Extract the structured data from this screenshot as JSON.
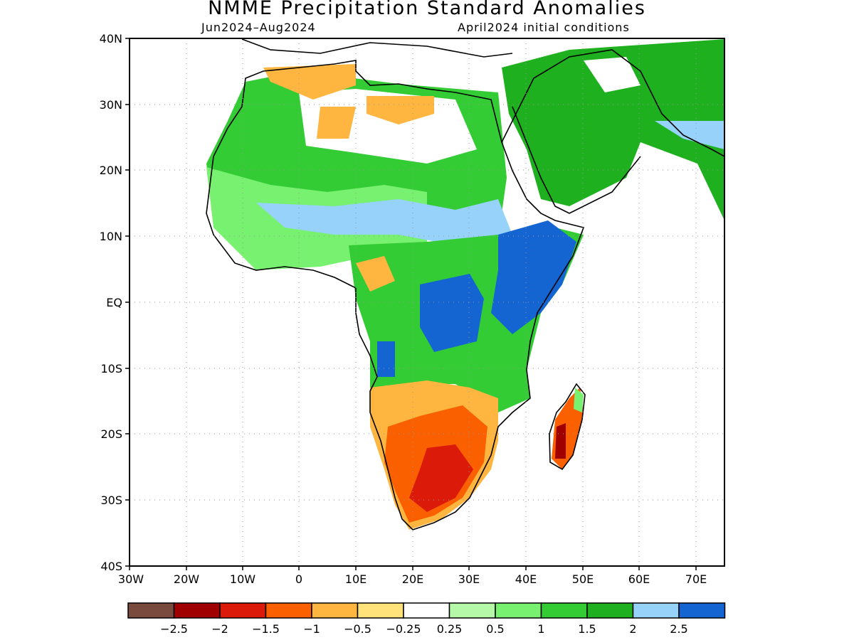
{
  "title": "NMME Precipitation Standard Anomalies",
  "subtitle_left": "Jun2024–Aug2024",
  "subtitle_right": "April2024 initial conditions",
  "lat_labels": [
    "40N",
    "30N",
    "20N",
    "10N",
    "EQ",
    "10S",
    "20S",
    "30S",
    "40S"
  ],
  "lon_labels": [
    "30W",
    "20W",
    "10W",
    "0",
    "10E",
    "20E",
    "30E",
    "40E",
    "50E",
    "60E",
    "70E"
  ],
  "colorbar": {
    "colors": [
      "#7a4a3e",
      "#a00000",
      "#dc1a0a",
      "#fa6000",
      "#ffb640",
      "#ffe27a",
      "#ffffff",
      "#b4f8a8",
      "#78f070",
      "#34cc34",
      "#1eb01e",
      "#96d2fa",
      "#1464d2"
    ],
    "labels": [
      "−2.5",
      "−2",
      "−1.5",
      "−1",
      "−0.5",
      "−0.25",
      "0.25",
      "0.5",
      "1",
      "1.5",
      "2",
      "2.5"
    ]
  },
  "map_extent": {
    "lon_range": [
      -30,
      75
    ],
    "lat_range": [
      -40,
      40
    ]
  }
}
